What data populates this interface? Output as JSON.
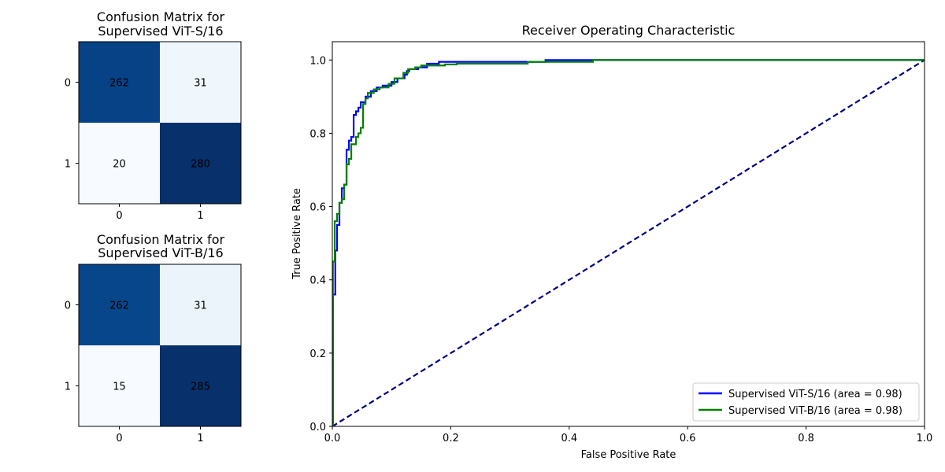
{
  "chart_data": [
    {
      "type": "heatmap",
      "title": "Confusion Matrix for\nSupervised ViT-S/16",
      "row_labels": [
        "0",
        "1"
      ],
      "col_labels": [
        "0",
        "1"
      ],
      "values": [
        [
          262,
          31
        ],
        [
          20,
          280
        ]
      ],
      "colormap": "Blues"
    },
    {
      "type": "heatmap",
      "title": "Confusion Matrix for\nSupervised ViT-B/16",
      "row_labels": [
        "0",
        "1"
      ],
      "col_labels": [
        "0",
        "1"
      ],
      "values": [
        [
          262,
          31
        ],
        [
          15,
          285
        ]
      ],
      "colormap": "Blues"
    },
    {
      "type": "line",
      "title": "Receiver Operating Characteristic",
      "xlabel": "False Positive Rate",
      "ylabel": "True Positive Rate",
      "xlim": [
        0.0,
        1.0
      ],
      "ylim": [
        0.0,
        1.05
      ],
      "xticks": [
        "0.0",
        "0.2",
        "0.4",
        "0.6",
        "0.8",
        "1.0"
      ],
      "yticks": [
        "0.0",
        "0.2",
        "0.4",
        "0.6",
        "0.8",
        "1.0"
      ],
      "legend_position": "lower-right",
      "series": [
        {
          "name": "Supervised ViT-S/16 (area = 0.98)",
          "color": "#0000ff",
          "style": "solid",
          "x": [
            0,
            0.001,
            0.001,
            0.005,
            0.005,
            0.008,
            0.008,
            0.012,
            0.012,
            0.016,
            0.016,
            0.02,
            0.02,
            0.024,
            0.024,
            0.028,
            0.028,
            0.032,
            0.032,
            0.036,
            0.036,
            0.04,
            0.04,
            0.044,
            0.044,
            0.048,
            0.048,
            0.056,
            0.056,
            0.065,
            0.065,
            0.075,
            0.075,
            0.085,
            0.085,
            0.1,
            0.1,
            0.11,
            0.11,
            0.122,
            0.122,
            0.126,
            0.126,
            0.13,
            0.13,
            0.145,
            0.145,
            0.16,
            0.16,
            0.18,
            0.18,
            0.2,
            0.2,
            0.36,
            0.36,
            0.44,
            0.44,
            1.0
          ],
          "y": [
            0,
            0,
            0.36,
            0.36,
            0.48,
            0.48,
            0.55,
            0.55,
            0.61,
            0.61,
            0.65,
            0.65,
            0.66,
            0.66,
            0.755,
            0.755,
            0.78,
            0.78,
            0.79,
            0.79,
            0.85,
            0.85,
            0.86,
            0.86,
            0.87,
            0.87,
            0.885,
            0.885,
            0.9,
            0.9,
            0.915,
            0.915,
            0.925,
            0.925,
            0.93,
            0.93,
            0.94,
            0.94,
            0.95,
            0.95,
            0.96,
            0.96,
            0.97,
            0.97,
            0.975,
            0.975,
            0.98,
            0.98,
            0.99,
            0.99,
            0.995,
            0.995,
            0.995,
            0.995,
            1.0,
            1.0,
            1.0,
            1.0
          ]
        },
        {
          "name": "Supervised ViT-B/16 (area = 0.98)",
          "color": "#008000",
          "style": "solid",
          "x": [
            0,
            0.001,
            0.001,
            0.004,
            0.004,
            0.008,
            0.008,
            0.012,
            0.012,
            0.016,
            0.016,
            0.02,
            0.02,
            0.024,
            0.024,
            0.028,
            0.028,
            0.032,
            0.032,
            0.04,
            0.04,
            0.044,
            0.044,
            0.048,
            0.048,
            0.052,
            0.052,
            0.056,
            0.056,
            0.06,
            0.06,
            0.07,
            0.07,
            0.08,
            0.08,
            0.095,
            0.095,
            0.105,
            0.105,
            0.12,
            0.12,
            0.128,
            0.128,
            0.14,
            0.14,
            0.15,
            0.15,
            0.19,
            0.19,
            0.21,
            0.21,
            0.33,
            0.33,
            0.44,
            0.44,
            1.0
          ],
          "y": [
            0,
            0,
            0.45,
            0.45,
            0.56,
            0.56,
            0.58,
            0.58,
            0.61,
            0.61,
            0.62,
            0.62,
            0.66,
            0.66,
            0.715,
            0.715,
            0.73,
            0.73,
            0.77,
            0.77,
            0.79,
            0.79,
            0.8,
            0.8,
            0.815,
            0.815,
            0.88,
            0.88,
            0.895,
            0.895,
            0.91,
            0.91,
            0.92,
            0.92,
            0.925,
            0.925,
            0.935,
            0.935,
            0.95,
            0.95,
            0.965,
            0.965,
            0.975,
            0.975,
            0.98,
            0.98,
            0.985,
            0.985,
            0.988,
            0.988,
            0.99,
            0.99,
            0.995,
            0.995,
            1.0,
            1.0
          ]
        },
        {
          "name": "",
          "color": "#000080",
          "style": "dashed",
          "x": [
            0,
            1
          ],
          "y": [
            0,
            1
          ]
        }
      ]
    }
  ]
}
